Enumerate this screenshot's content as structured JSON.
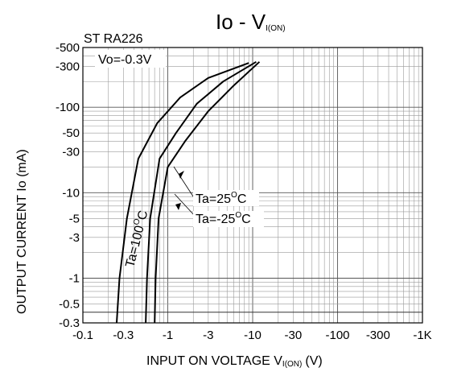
{
  "chart_data": {
    "type": "line",
    "title_main": "Io - V",
    "title_sub": "I(ON)",
    "device_label": "ST RA226",
    "condition_label": "Vo=-0.3V",
    "xlabel_main": "INPUT ON VOLTAGE V",
    "xlabel_sub": "I(ON)",
    "xlabel_unit": "(V)",
    "ylabel": "OUTPUT CURRENT Io (mA)",
    "x_scale": "log",
    "y_scale": "log",
    "xlim": [
      -0.1,
      -1000
    ],
    "ylim": [
      -0.3,
      -500
    ],
    "grid": true,
    "x_ticks": [
      "-0.1",
      "-0.3",
      "-1",
      "-3",
      "-10",
      "-30",
      "-100",
      "-300",
      "-1K"
    ],
    "y_ticks": [
      "-500",
      "-300",
      "-100",
      "-50",
      "-30",
      "-10",
      "-5",
      "-3",
      "-1",
      "-0.5",
      "-0.3"
    ],
    "series": [
      {
        "name": "Ta=100°C",
        "x": [
          -0.25,
          -0.27,
          -0.33,
          -0.45,
          -0.75,
          -1.4,
          -3.0,
          -9.0
        ],
        "y": [
          -0.3,
          -1,
          -5,
          -25,
          -65,
          -130,
          -220,
          -330
        ]
      },
      {
        "name": "Ta=25°C",
        "x": [
          -0.55,
          -0.57,
          -0.62,
          -0.8,
          -1.25,
          -2.2,
          -4.5,
          -11.0
        ],
        "y": [
          -0.3,
          -1,
          -5,
          -25,
          -50,
          -110,
          -200,
          -340
        ]
      },
      {
        "name": "Ta=-25°C",
        "x": [
          -0.7,
          -0.72,
          -0.78,
          -1.0,
          -1.6,
          -3.0,
          -6.0,
          -12.0
        ],
        "y": [
          -0.3,
          -1,
          -5,
          -20,
          -40,
          -90,
          -180,
          -340
        ]
      }
    ],
    "annotations": {
      "ta100": {
        "prefix": "Ta=100",
        "sup": "O",
        "suffix": "C"
      },
      "ta25": {
        "prefix": "Ta=25",
        "sup": "O",
        "suffix": "C"
      },
      "tam25": {
        "prefix": "Ta=-25",
        "sup": "O",
        "suffix": "C"
      }
    }
  }
}
